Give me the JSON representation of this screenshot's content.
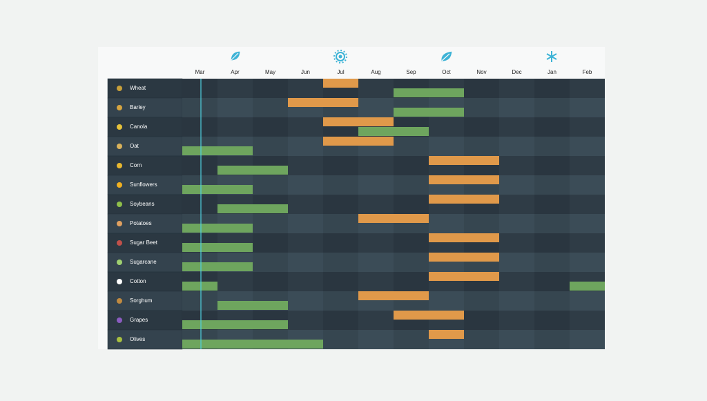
{
  "months": [
    "Mar",
    "Apr",
    "May",
    "Jun",
    "Jul",
    "Aug",
    "Sep",
    "Oct",
    "Nov",
    "Dec",
    "Jan",
    "Feb"
  ],
  "crops": [
    {
      "name": "Wheat",
      "harvest": [
        "Jul"
      ],
      "plant": [
        "Sep",
        "Oct"
      ]
    },
    {
      "name": "Barley",
      "harvest": [
        "Jun",
        "Jul"
      ],
      "plant": [
        "Sep",
        "Oct"
      ]
    },
    {
      "name": "Canola",
      "harvest": [
        "Jul",
        "Aug"
      ],
      "plant": [
        "Aug",
        "Sep"
      ]
    },
    {
      "name": "Oat",
      "harvest": [
        "Jul",
        "Aug"
      ],
      "plant": [
        "Mar",
        "Apr"
      ]
    },
    {
      "name": "Corn",
      "harvest": [
        "Oct",
        "Nov"
      ],
      "plant": [
        "Apr",
        "May"
      ]
    },
    {
      "name": "Sunflowers",
      "harvest": [
        "Oct",
        "Nov"
      ],
      "plant": [
        "Mar",
        "Apr"
      ]
    },
    {
      "name": "Soybeans",
      "harvest": [
        "Oct",
        "Nov"
      ],
      "plant": [
        "Apr",
        "May"
      ]
    },
    {
      "name": "Potatoes",
      "harvest": [
        "Aug",
        "Sep"
      ],
      "plant": [
        "Mar",
        "Apr"
      ]
    },
    {
      "name": "Sugar Beet",
      "harvest": [
        "Oct",
        "Nov"
      ],
      "plant": [
        "Mar",
        "Apr"
      ]
    },
    {
      "name": "Sugarcane",
      "harvest": [
        "Oct",
        "Nov"
      ],
      "plant": [
        "Mar",
        "Apr"
      ]
    },
    {
      "name": "Cotton",
      "harvest": [
        "Oct",
        "Nov"
      ],
      "plant": [
        "Mar",
        "Feb"
      ]
    },
    {
      "name": "Sorghum",
      "harvest": [
        "Aug",
        "Sep"
      ],
      "plant": [
        "Apr",
        "May"
      ]
    },
    {
      "name": "Grapes",
      "harvest": [
        "Sep",
        "Oct"
      ],
      "plant": [
        "Mar",
        "Apr",
        "May"
      ]
    },
    {
      "name": "Olives",
      "harvest": [
        "Oct"
      ],
      "plant": [
        "Mar",
        "Apr",
        "May",
        "Jun"
      ]
    }
  ]
}
